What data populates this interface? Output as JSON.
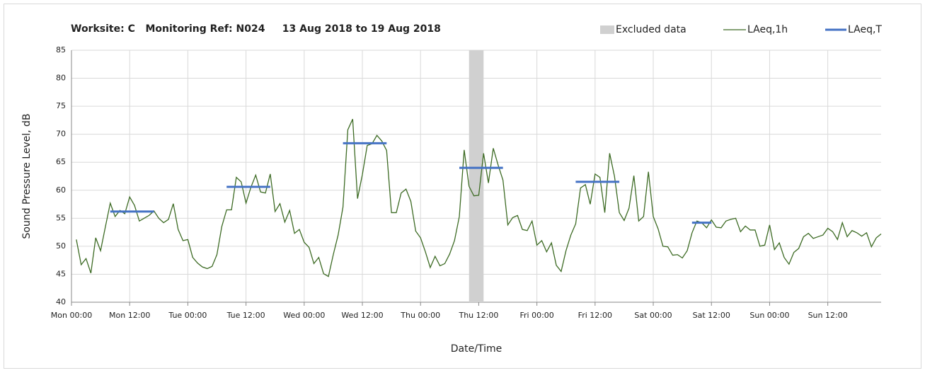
{
  "chart_data": {
    "type": "line",
    "title": "Worksite: C   Monitoring Ref: N024     13 Aug 2018 to 19 Aug 2018",
    "xlabel": "Date/Time",
    "ylabel": "Sound Pressure Level, dB",
    "xlim": [
      0,
      167
    ],
    "ylim": [
      40,
      85
    ],
    "xticks": [
      {
        "value": 0,
        "label": "Mon 00:00"
      },
      {
        "value": 12,
        "label": "Mon 12:00"
      },
      {
        "value": 24,
        "label": "Tue 00:00"
      },
      {
        "value": 36,
        "label": "Tue 12:00"
      },
      {
        "value": 48,
        "label": "Wed 00:00"
      },
      {
        "value": 60,
        "label": "Wed 12:00"
      },
      {
        "value": 72,
        "label": "Thu 00:00"
      },
      {
        "value": 84,
        "label": "Thu 12:00"
      },
      {
        "value": 96,
        "label": "Fri 00:00"
      },
      {
        "value": 108,
        "label": "Fri 12:00"
      },
      {
        "value": 120,
        "label": "Sat 00:00"
      },
      {
        "value": 132,
        "label": "Sat 12:00"
      },
      {
        "value": 144,
        "label": "Sun 00:00"
      },
      {
        "value": 156,
        "label": "Sun 12:00"
      }
    ],
    "yticks": [
      40,
      45,
      50,
      55,
      60,
      65,
      70,
      75,
      80,
      85
    ],
    "grid": true,
    "excluded": {
      "name": "Excluded data",
      "color": "#d0d0d0",
      "start": 82,
      "end": 85
    },
    "series": [
      {
        "name": "LAeq,1h",
        "color": "#3d6b24",
        "x": [
          1,
          2,
          3,
          4,
          5,
          6,
          7,
          8,
          9,
          10,
          11,
          12,
          13,
          14,
          15,
          16,
          17,
          18,
          19,
          20,
          21,
          22,
          23,
          24,
          25,
          26,
          27,
          28,
          29,
          30,
          31,
          32,
          33,
          34,
          35,
          36,
          37,
          38,
          39,
          40,
          41,
          42,
          43,
          44,
          45,
          46,
          47,
          48,
          49,
          50,
          51,
          52,
          53,
          54,
          55,
          56,
          57,
          58,
          59,
          60,
          61,
          62,
          63,
          64,
          65,
          66,
          67,
          68,
          69,
          70,
          71,
          72,
          73,
          74,
          75,
          76,
          77,
          78,
          79,
          80,
          81,
          82,
          83,
          84,
          85,
          86,
          87,
          88,
          89,
          90,
          91,
          92,
          93,
          94,
          95,
          96,
          97,
          98,
          99,
          100,
          101,
          102,
          103,
          104,
          105,
          106,
          107,
          108,
          109,
          110,
          111,
          112,
          113,
          114,
          115,
          116,
          117,
          118,
          119,
          120,
          121,
          122,
          123,
          124,
          125,
          126,
          127,
          128,
          129,
          130,
          131,
          132,
          133,
          134,
          135,
          136,
          137,
          138,
          139,
          140,
          141,
          142,
          143,
          144,
          145,
          146,
          147,
          148,
          149,
          150,
          151,
          152,
          153,
          154,
          155,
          156,
          157,
          158,
          159,
          160,
          161,
          162,
          163,
          164,
          165,
          166,
          167
        ],
        "values": [
          51.2,
          46.7,
          47.8,
          45.2,
          51.5,
          49.2,
          53.5,
          57.7,
          55.3,
          56.4,
          55.8,
          58.8,
          57.3,
          54.5,
          55,
          55.5,
          56.3,
          55,
          54.2,
          54.8,
          57.6,
          53,
          51,
          51.2,
          48,
          47,
          46.3,
          46,
          46.4,
          48.5,
          53.5,
          56.5,
          56.5,
          62.3,
          61.5,
          57.7,
          60.5,
          62.7,
          59.7,
          59.5,
          62.9,
          56.2,
          57.6,
          54.3,
          56.4,
          52.3,
          53,
          50.7,
          49.8,
          46.9,
          48,
          45.1,
          44.6,
          48.5,
          52,
          57,
          70.8,
          72.7,
          58.5,
          62.8,
          68,
          68.3,
          69.8,
          68.8,
          67.1,
          56,
          56,
          59.5,
          60.2,
          58,
          52.7,
          51.5,
          49,
          46.2,
          48.2,
          46.5,
          46.9,
          48.6,
          51,
          55.3,
          67.2,
          60.7,
          59,
          59.1,
          66.6,
          61.3,
          67.5,
          64.5,
          61.8,
          53.8,
          55.1,
          55.5,
          53,
          52.8,
          54.5,
          50.2,
          51,
          49,
          50.6,
          46.6,
          45.5,
          49.2,
          52,
          54,
          60.4,
          61,
          57.5,
          62.9,
          62.3,
          56,
          66.6,
          62.5,
          56,
          54.6,
          56.8,
          62.6,
          54.5,
          55.3,
          63.3,
          55.3,
          53.1,
          50,
          49.9,
          48.4,
          48.5,
          47.9,
          49.2,
          52.4,
          54.5,
          54.2,
          53.3,
          54.7,
          53.4,
          53.3,
          54.5,
          54.8,
          55,
          52.6,
          53.6,
          52.9,
          52.9,
          50,
          50.2,
          53.8,
          49.4,
          50.6,
          48,
          46.8,
          48.9,
          49.6,
          51.7,
          52.3,
          51.4,
          51.7,
          52,
          53.2,
          52.6,
          51.2,
          54.2,
          51.7,
          52.8,
          52.4,
          51.8,
          52.4,
          49.9,
          51.5,
          52.2
        ]
      },
      {
        "name": "LAeq,T",
        "color": "#4472c4",
        "segments": [
          {
            "start": 8,
            "end": 17,
            "value": 56.2
          },
          {
            "start": 32,
            "end": 41,
            "value": 60.6
          },
          {
            "start": 56,
            "end": 65,
            "value": 68.4
          },
          {
            "start": 80,
            "end": 89,
            "value": 64
          },
          {
            "start": 104,
            "end": 113,
            "value": 61.5
          },
          {
            "start": 128,
            "end": 132,
            "value": 54.2
          }
        ]
      }
    ]
  }
}
